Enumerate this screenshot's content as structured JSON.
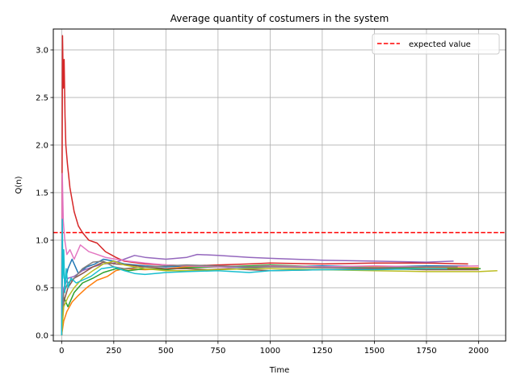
{
  "chart_data": {
    "type": "line",
    "title": "Average quantity of costumers in the system",
    "xlabel": "Time",
    "ylabel": "Q(n)",
    "xlim": [
      -40,
      2130
    ],
    "ylim": [
      -0.06,
      3.22
    ],
    "xticks": [
      0,
      250,
      500,
      750,
      1000,
      1250,
      1500,
      1750,
      2000
    ],
    "yticks": [
      0.0,
      0.5,
      1.0,
      1.5,
      2.0,
      2.5,
      3.0
    ],
    "xtick_labels": [
      "0",
      "250",
      "500",
      "750",
      "1000",
      "1250",
      "1500",
      "1750",
      "2000"
    ],
    "ytick_labels": [
      "0.0",
      "0.5",
      "1.0",
      "1.5",
      "2.0",
      "2.5",
      "3.0"
    ],
    "grid": true,
    "legend": {
      "position": "top-right",
      "entries": [
        "expected value"
      ]
    },
    "reference_line": {
      "name": "expected value",
      "y": 1.08,
      "color": "#ff0000",
      "style": "dashed"
    },
    "series": [
      {
        "color": "#1f77b4",
        "x": [
          0,
          5,
          15,
          30,
          50,
          80,
          120,
          160,
          200,
          250,
          300,
          400,
          500,
          600,
          750,
          900,
          1000,
          1250,
          1500,
          1750,
          1950
        ],
        "y": [
          0.0,
          0.9,
          0.55,
          0.7,
          0.8,
          0.65,
          0.72,
          0.75,
          0.8,
          0.78,
          0.75,
          0.73,
          0.72,
          0.73,
          0.72,
          0.71,
          0.72,
          0.73,
          0.72,
          0.73,
          0.73
        ]
      },
      {
        "color": "#ff7f0e",
        "x": [
          0,
          10,
          25,
          50,
          80,
          120,
          170,
          220,
          260,
          300,
          400,
          500,
          600,
          750,
          900,
          1000,
          1250,
          1500,
          1750,
          2000
        ],
        "y": [
          0.0,
          0.15,
          0.25,
          0.35,
          0.42,
          0.5,
          0.58,
          0.62,
          0.68,
          0.7,
          0.69,
          0.7,
          0.72,
          0.73,
          0.72,
          0.72,
          0.71,
          0.72,
          0.71,
          0.71
        ]
      },
      {
        "color": "#2ca02c",
        "x": [
          0,
          10,
          30,
          60,
          100,
          150,
          200,
          260,
          320,
          400,
          500,
          600,
          750,
          900,
          1000,
          1250,
          1500,
          1750,
          2010
        ],
        "y": [
          0.0,
          0.4,
          0.3,
          0.45,
          0.55,
          0.6,
          0.66,
          0.7,
          0.68,
          0.7,
          0.69,
          0.71,
          0.72,
          0.73,
          0.74,
          0.72,
          0.71,
          0.7,
          0.7
        ]
      },
      {
        "color": "#d62728",
        "x": [
          0,
          4,
          8,
          12,
          16,
          20,
          28,
          40,
          60,
          80,
          100,
          130,
          170,
          210,
          260,
          300,
          400,
          500,
          600,
          750,
          900,
          1000,
          1250,
          1500,
          1750,
          1950
        ],
        "y": [
          0.0,
          3.15,
          2.6,
          2.9,
          2.3,
          2.0,
          1.8,
          1.55,
          1.3,
          1.15,
          1.08,
          1.0,
          0.97,
          0.88,
          0.82,
          0.78,
          0.75,
          0.74,
          0.73,
          0.74,
          0.75,
          0.76,
          0.75,
          0.76,
          0.76,
          0.75
        ]
      },
      {
        "color": "#9467bd",
        "x": [
          0,
          10,
          30,
          60,
          100,
          150,
          200,
          250,
          300,
          350,
          400,
          500,
          600,
          650,
          750,
          900,
          1000,
          1250,
          1500,
          1750,
          1880
        ],
        "y": [
          0.0,
          0.5,
          0.6,
          0.62,
          0.68,
          0.72,
          0.75,
          0.76,
          0.8,
          0.84,
          0.82,
          0.8,
          0.82,
          0.85,
          0.84,
          0.82,
          0.81,
          0.79,
          0.78,
          0.77,
          0.78
        ]
      },
      {
        "color": "#8c564b",
        "x": [
          0,
          10,
          30,
          60,
          100,
          150,
          200,
          260,
          320,
          400,
          500,
          600,
          700,
          800,
          900,
          1000,
          1250,
          1500,
          1750,
          2000
        ],
        "y": [
          0.0,
          0.35,
          0.5,
          0.6,
          0.65,
          0.72,
          0.77,
          0.75,
          0.74,
          0.72,
          0.7,
          0.7,
          0.69,
          0.7,
          0.69,
          0.68,
          0.69,
          0.7,
          0.69,
          0.69
        ]
      },
      {
        "color": "#e377c2",
        "x": [
          0,
          3,
          8,
          15,
          25,
          40,
          60,
          90,
          130,
          170,
          210,
          260,
          320,
          400,
          500,
          600,
          750,
          900,
          1000,
          1250,
          1500,
          1750,
          2000
        ],
        "y": [
          0.0,
          1.7,
          1.2,
          1.0,
          0.85,
          0.9,
          0.8,
          0.95,
          0.88,
          0.85,
          0.82,
          0.8,
          0.78,
          0.76,
          0.74,
          0.73,
          0.72,
          0.72,
          0.73,
          0.72,
          0.73,
          0.72,
          0.73
        ]
      },
      {
        "color": "#7f7f7f",
        "x": [
          0,
          10,
          30,
          60,
          100,
          150,
          200,
          250,
          300,
          400,
          500,
          600,
          750,
          900,
          1000,
          1250,
          1500,
          1750,
          1900
        ],
        "y": [
          0.0,
          0.45,
          0.55,
          0.6,
          0.7,
          0.77,
          0.78,
          0.72,
          0.7,
          0.72,
          0.73,
          0.74,
          0.73,
          0.72,
          0.72,
          0.71,
          0.71,
          0.72,
          0.72
        ]
      },
      {
        "color": "#bcbd22",
        "x": [
          0,
          10,
          30,
          60,
          100,
          150,
          200,
          250,
          300,
          400,
          500,
          600,
          750,
          900,
          1000,
          1250,
          1500,
          1750,
          2000,
          2090
        ],
        "y": [
          0.0,
          0.3,
          0.4,
          0.5,
          0.6,
          0.68,
          0.75,
          0.78,
          0.74,
          0.7,
          0.68,
          0.68,
          0.69,
          0.7,
          0.7,
          0.69,
          0.68,
          0.67,
          0.67,
          0.68
        ]
      },
      {
        "color": "#17becf",
        "x": [
          0,
          3,
          6,
          10,
          15,
          22,
          30,
          45,
          70,
          100,
          140,
          190,
          250,
          300,
          350,
          400,
          500,
          600,
          750,
          900,
          1000,
          1250,
          1500,
          1750,
          1850
        ],
        "y": [
          0.0,
          1.22,
          0.6,
          0.9,
          0.45,
          0.7,
          0.5,
          0.6,
          0.55,
          0.58,
          0.62,
          0.7,
          0.72,
          0.68,
          0.65,
          0.64,
          0.66,
          0.67,
          0.68,
          0.66,
          0.68,
          0.69,
          0.69,
          0.7,
          0.7
        ]
      }
    ]
  }
}
